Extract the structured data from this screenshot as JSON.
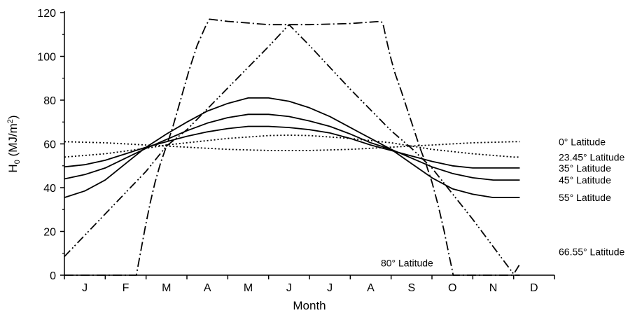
{
  "chart_data": {
    "type": "line",
    "title": "",
    "xlabel": "Month",
    "ylabel": "H",
    "ylabel_sub": "0",
    "ylabel_units": " (MJ/m",
    "ylabel_sup": "2",
    "ylabel_close": ")",
    "x_unit": "month index (0 = start of J, 12 = end of D)",
    "xlim": [
      0,
      11.15
    ],
    "ylim": [
      0,
      120
    ],
    "yticks": [
      0,
      20,
      40,
      60,
      80,
      100,
      120
    ],
    "categories": [
      "J",
      "F",
      "M",
      "A",
      "M",
      "J",
      "J",
      "A",
      "S",
      "O",
      "N",
      "D"
    ],
    "grid": false,
    "legend": "inline-right",
    "colors": {
      "line": "#000000",
      "axis": "#000000"
    },
    "series": [
      {
        "name": "0° Latitude",
        "dash": "dotted",
        "x": [
          0,
          1,
          2,
          2.5,
          3,
          4,
          5,
          5.5,
          6,
          7,
          8,
          8.5,
          9,
          10,
          11,
          11.15
        ],
        "y": [
          61,
          60.5,
          59.5,
          59,
          58.5,
          57.5,
          57,
          57,
          57,
          57.5,
          58.5,
          59,
          59.5,
          60.5,
          61,
          61
        ]
      },
      {
        "name": "23.45° Latitude",
        "dash": "dotted",
        "x": [
          0,
          1,
          2,
          2.5,
          3,
          4,
          5,
          5.5,
          6,
          7,
          8,
          8.5,
          9,
          10,
          11,
          11.15
        ],
        "y": [
          54,
          55.5,
          58,
          59.5,
          60.5,
          62.5,
          63.8,
          64,
          63.8,
          62.5,
          60.5,
          59,
          57.5,
          55.5,
          54,
          54
        ]
      },
      {
        "name": "35° Latitude",
        "dash": "solid",
        "x": [
          0,
          0.5,
          1,
          1.5,
          2,
          2.5,
          3,
          3.5,
          4,
          4.5,
          5,
          5.5,
          6,
          6.5,
          7,
          7.5,
          8,
          8.5,
          9,
          9.5,
          10,
          10.5,
          11,
          11.15
        ],
        "y": [
          49.5,
          50.5,
          52.5,
          55.5,
          58.5,
          61,
          63.5,
          65.5,
          67,
          68,
          68,
          67.5,
          66.5,
          65,
          62.5,
          59.5,
          57,
          54.5,
          52,
          50,
          49,
          49,
          49,
          49
        ]
      },
      {
        "name": "45° Latitude",
        "dash": "solid",
        "x": [
          0,
          0.5,
          1,
          1.5,
          2,
          2.5,
          3,
          3.5,
          4,
          4.5,
          5,
          5.5,
          6,
          6.5,
          7,
          7.5,
          8,
          8.5,
          9,
          9.5,
          10,
          10.5,
          11,
          11.15
        ],
        "y": [
          44,
          46,
          49,
          53.5,
          58,
          62,
          66,
          69.5,
          72,
          73.5,
          73.5,
          72.5,
          70.5,
          68,
          64.5,
          60.5,
          57.5,
          53.5,
          49.5,
          46.5,
          44.5,
          43.5,
          43.5,
          43.5
        ]
      },
      {
        "name": "55° Latitude",
        "dash": "solid",
        "x": [
          0,
          0.5,
          1,
          1.5,
          2,
          2.5,
          3,
          3.5,
          4,
          4.5,
          5,
          5.5,
          6,
          6.5,
          7,
          7.5,
          8,
          8.5,
          9,
          9.5,
          10,
          10.5,
          11,
          11.15
        ],
        "y": [
          35.5,
          38.5,
          43.5,
          51,
          58.5,
          64.5,
          70,
          75,
          78.5,
          81,
          81,
          79.5,
          76.5,
          72.5,
          67.5,
          62.5,
          57.5,
          51,
          44.5,
          39.5,
          37,
          35.5,
          35.5,
          35.5
        ]
      },
      {
        "name": "66.55° Latitude",
        "dash": "dashdotdot",
        "x": [
          0,
          1,
          2,
          2.5,
          3,
          4,
          5,
          5.5,
          6,
          7,
          8,
          8.5,
          9,
          10,
          11,
          11.15
        ],
        "y": [
          8.5,
          28,
          47.5,
          59,
          66.5,
          85.5,
          104.5,
          114.5,
          105,
          85,
          66,
          58,
          49,
          25.5,
          0.5,
          5
        ]
      },
      {
        "name": "80° Latitude",
        "dash": "dashdot",
        "x": [
          0,
          1,
          1.76,
          1.86,
          1.98,
          2.1,
          2.22,
          2.35,
          2.5,
          2.65,
          2.85,
          3.05,
          3.25,
          3.45,
          3.55,
          4,
          5,
          5.5,
          6,
          7,
          7.75,
          7.8,
          7.88,
          7.98,
          8.1,
          8.25,
          8.4,
          8.55,
          8.7,
          8.85,
          9,
          9.15,
          9.3,
          9.42,
          9.5,
          9.52,
          10,
          11,
          11.15
        ],
        "y": [
          0,
          0,
          0,
          10,
          22,
          33,
          42.5,
          51,
          59,
          67.5,
          80.5,
          93.5,
          105,
          113.5,
          117,
          116,
          114.5,
          114.5,
          114.5,
          115,
          116,
          115,
          108,
          100,
          92,
          84,
          75.5,
          67,
          58.5,
          51,
          42.5,
          32,
          20,
          9,
          2,
          0,
          0,
          0,
          0
        ]
      }
    ],
    "annotations": [
      {
        "text": "0° Latitude",
        "y": 61
      },
      {
        "text": "23.45° Latitude",
        "y": 54
      },
      {
        "text": "35° Latitude",
        "y": 49
      },
      {
        "text": "45° Latitude",
        "y": 43.5
      },
      {
        "text": "55° Latitude",
        "y": 35.5
      },
      {
        "text": "66.55° Latitude",
        "y": 8.5
      },
      {
        "text": "80° Latitude",
        "x": 9.1,
        "y": 4
      }
    ]
  }
}
